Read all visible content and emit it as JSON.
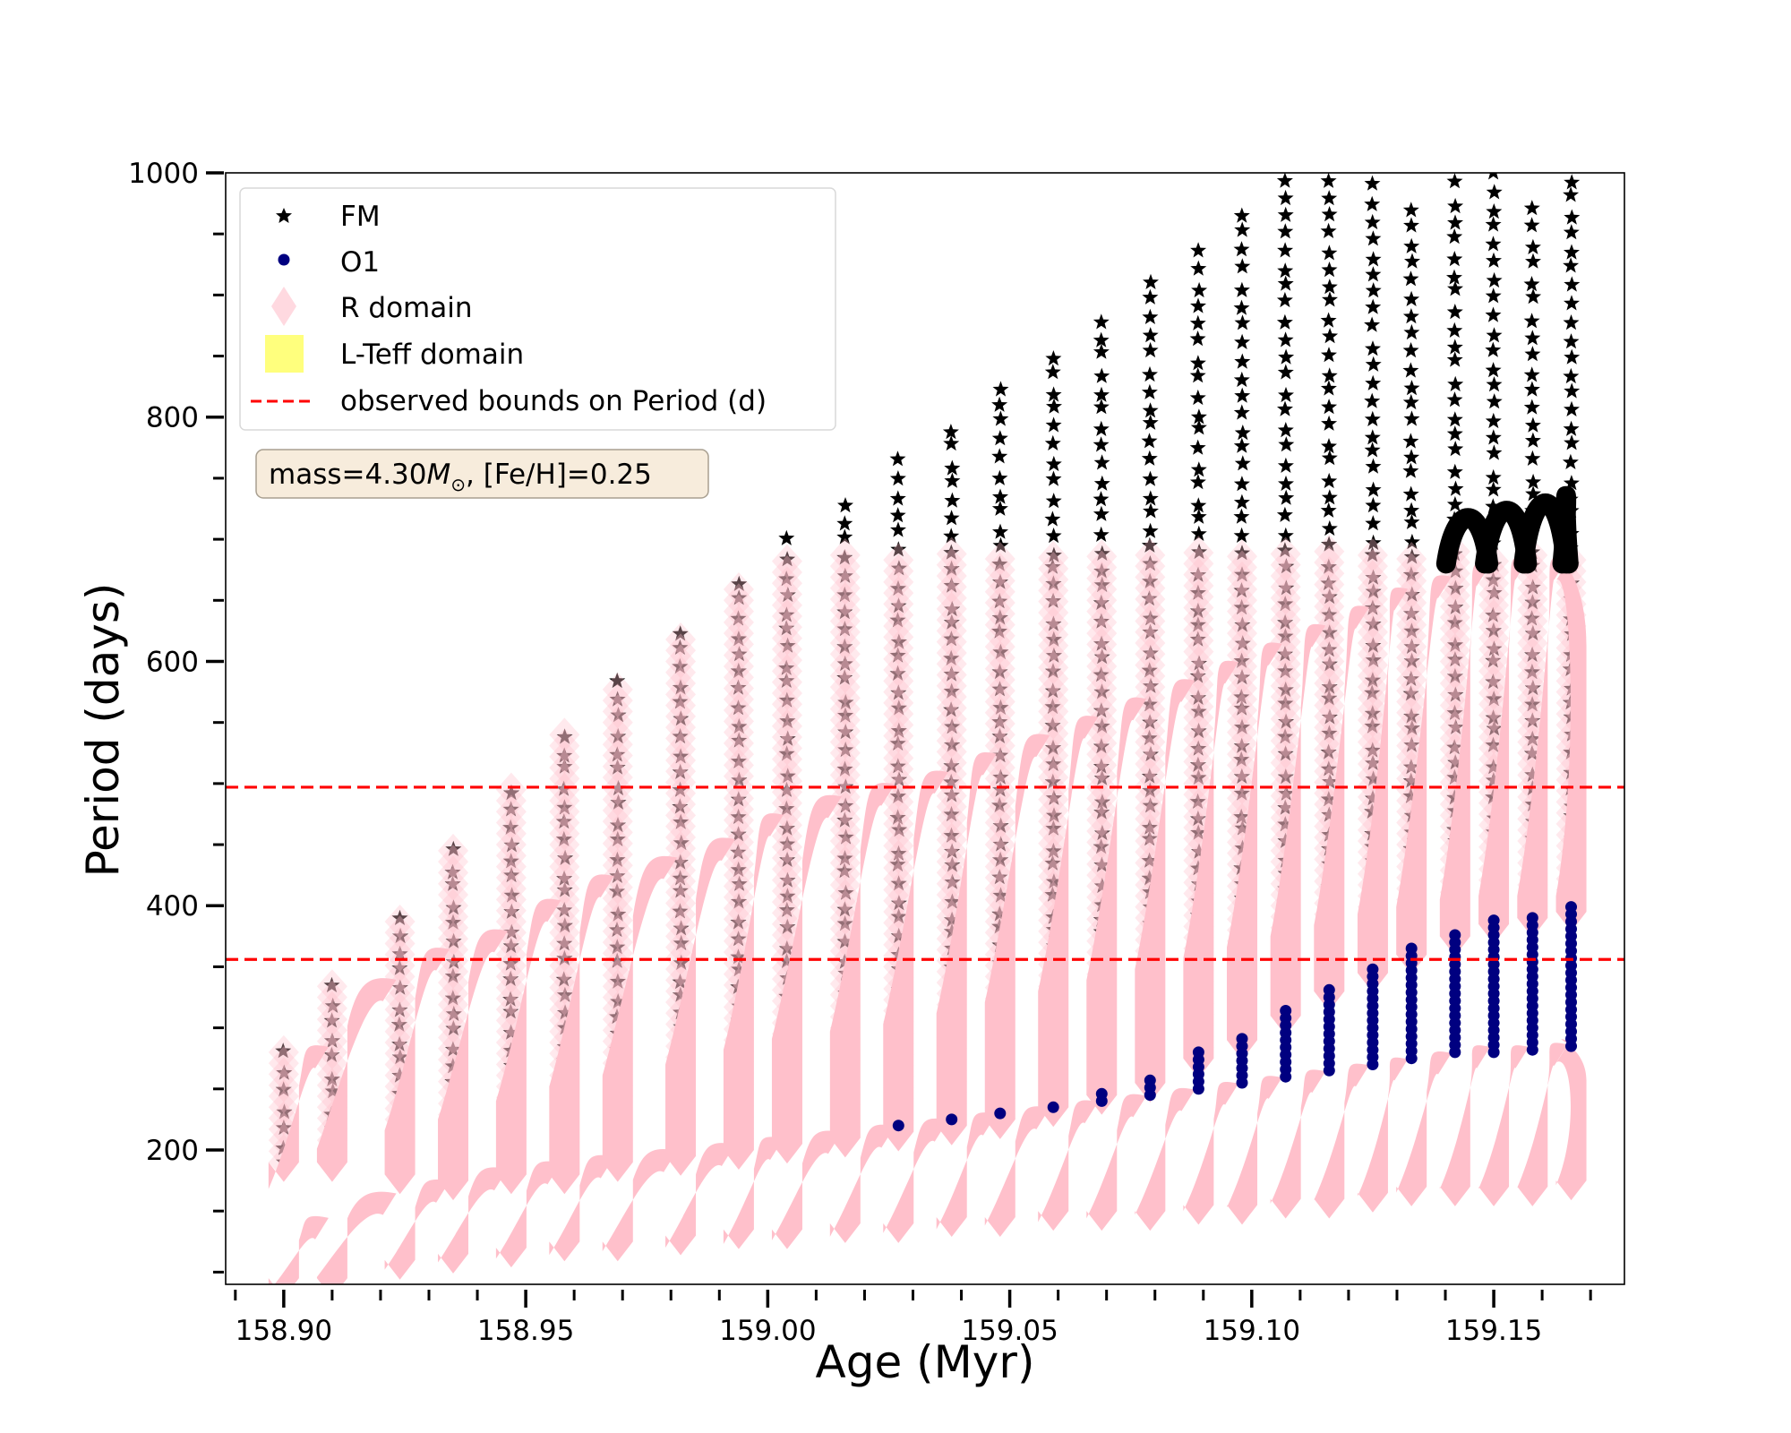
{
  "chart_data": {
    "type": "scatter",
    "title": "",
    "xlabel": "Age (Myr)",
    "ylabel": "Period (days)",
    "xlim": [
      158.888,
      159.177
    ],
    "ylim": [
      90,
      1000
    ],
    "xticks": [
      158.9,
      158.95,
      159.0,
      159.05,
      159.1,
      159.15
    ],
    "xtick_labels": [
      "158.90",
      "158.95",
      "159.00",
      "159.05",
      "159.10",
      "159.15"
    ],
    "x_minor_step": 0.01,
    "yticks": [
      200,
      400,
      600,
      800,
      1000
    ],
    "ytick_labels": [
      "200",
      "400",
      "600",
      "800",
      "1000"
    ],
    "y_minor_step": 50,
    "grid": false,
    "legend": {
      "placement": "top-left",
      "entries": [
        {
          "label": "FM",
          "marker": "star",
          "color": "#000000"
        },
        {
          "label": "O1",
          "marker": "circle",
          "color": "#000080"
        },
        {
          "label": "R domain",
          "marker": "diamond",
          "color": "#ffc0cb"
        },
        {
          "label": "L-Teff domain",
          "marker": "square",
          "color": "#ffff66"
        },
        {
          "label": "observed bounds on Period (d)",
          "marker": "dashed-line",
          "color": "#ff0000"
        }
      ]
    },
    "annotation": {
      "text_prefix": "mass=4.30",
      "text_symbol": "M",
      "text_sub": "⊙",
      "text_suffix": ", [Fe/H]=0.25",
      "box_color": "#f7ecdc",
      "placement": "upper-left"
    },
    "hlines": [
      {
        "label": "upper observed bound",
        "y": 497,
        "color": "#ff0000",
        "style": "dashed"
      },
      {
        "label": "lower observed bound",
        "y": 356,
        "color": "#ff0000",
        "style": "dashed"
      }
    ],
    "series_colors": {
      "FM": "#000000",
      "O1": "#000080",
      "R_domain": "#ffc0cb"
    },
    "pulses": [
      {
        "age": 158.9,
        "fm_lo": 190,
        "fm_hi": 280,
        "fm_top": 280,
        "o1_lo": 95,
        "o1_hi": 140,
        "o1_dots": false
      },
      {
        "age": 158.91,
        "fm_lo": 190,
        "fm_hi": 335,
        "fm_top": 335,
        "o1_lo": 95,
        "o1_hi": 160,
        "o1_dots": false
      },
      {
        "age": 158.924,
        "fm_lo": 180,
        "fm_hi": 360,
        "fm_top": 390,
        "o1_lo": 110,
        "o1_hi": 170,
        "o1_dots": false
      },
      {
        "age": 158.935,
        "fm_lo": 175,
        "fm_hi": 375,
        "fm_top": 445,
        "o1_lo": 115,
        "o1_hi": 180,
        "o1_dots": false
      },
      {
        "age": 158.947,
        "fm_lo": 180,
        "fm_hi": 400,
        "fm_top": 495,
        "o1_lo": 120,
        "o1_hi": 185,
        "o1_dots": false
      },
      {
        "age": 158.958,
        "fm_lo": 180,
        "fm_hi": 420,
        "fm_top": 540,
        "o1_lo": 125,
        "o1_hi": 190,
        "o1_dots": false
      },
      {
        "age": 158.969,
        "fm_lo": 190,
        "fm_hi": 435,
        "fm_top": 585,
        "o1_lo": 125,
        "o1_hi": 195,
        "o1_dots": false
      },
      {
        "age": 158.982,
        "fm_lo": 195,
        "fm_hi": 450,
        "fm_top": 625,
        "o1_lo": 130,
        "o1_hi": 200,
        "o1_dots": false
      },
      {
        "age": 158.994,
        "fm_lo": 200,
        "fm_hi": 470,
        "fm_top": 665,
        "o1_lo": 135,
        "o1_hi": 205,
        "o1_dots": false
      },
      {
        "age": 159.004,
        "fm_lo": 205,
        "fm_hi": 485,
        "fm_top": 700,
        "o1_lo": 135,
        "o1_hi": 210,
        "o1_dots": false
      },
      {
        "age": 159.016,
        "fm_lo": 210,
        "fm_hi": 495,
        "fm_top": 730,
        "o1_lo": 140,
        "o1_hi": 215,
        "o1_dots": false
      },
      {
        "age": 159.027,
        "fm_lo": 215,
        "fm_hi": 505,
        "fm_top": 765,
        "o1_lo": 140,
        "o1_hi": 220,
        "o1_dots": true
      },
      {
        "age": 159.038,
        "fm_lo": 220,
        "fm_hi": 520,
        "fm_top": 790,
        "o1_lo": 145,
        "o1_hi": 225,
        "o1_dots": true
      },
      {
        "age": 159.048,
        "fm_lo": 225,
        "fm_hi": 535,
        "fm_top": 825,
        "o1_lo": 145,
        "o1_hi": 230,
        "o1_dots": true
      },
      {
        "age": 159.059,
        "fm_lo": 235,
        "fm_hi": 550,
        "fm_top": 850,
        "o1_lo": 150,
        "o1_hi": 235,
        "o1_dots": true
      },
      {
        "age": 159.069,
        "fm_lo": 245,
        "fm_hi": 565,
        "fm_top": 880,
        "o1_lo": 150,
        "o1_hi": 240,
        "o1_dots": true
      },
      {
        "age": 159.079,
        "fm_lo": 255,
        "fm_hi": 580,
        "fm_top": 910,
        "o1_lo": 150,
        "o1_hi": 245,
        "o1_dots": true
      },
      {
        "age": 159.089,
        "fm_lo": 275,
        "fm_hi": 595,
        "fm_top": 935,
        "o1_lo": 155,
        "o1_hi": 250,
        "o1_dots": true
      },
      {
        "age": 159.098,
        "fm_lo": 290,
        "fm_hi": 610,
        "fm_top": 965,
        "o1_lo": 155,
        "o1_hi": 255,
        "o1_dots": true
      },
      {
        "age": 159.107,
        "fm_lo": 310,
        "fm_hi": 625,
        "fm_top": 995,
        "o1_lo": 160,
        "o1_hi": 260,
        "o1_dots": true
      },
      {
        "age": 159.116,
        "fm_lo": 330,
        "fm_hi": 640,
        "fm_top": 995,
        "o1_lo": 160,
        "o1_hi": 265,
        "o1_dots": true
      },
      {
        "age": 159.125,
        "fm_lo": 345,
        "fm_hi": 655,
        "fm_top": 990,
        "o1_lo": 165,
        "o1_hi": 270,
        "o1_dots": true
      },
      {
        "age": 159.133,
        "fm_lo": 360,
        "fm_hi": 665,
        "fm_top": 970,
        "o1_lo": 170,
        "o1_hi": 275,
        "o1_dots": true
      },
      {
        "age": 159.142,
        "fm_lo": 375,
        "fm_hi": 675,
        "fm_top": 990,
        "o1_lo": 170,
        "o1_hi": 280,
        "o1_dots": true
      },
      {
        "age": 159.15,
        "fm_lo": 385,
        "fm_hi": 680,
        "fm_top": 1000,
        "o1_lo": 170,
        "o1_hi": 280,
        "o1_dots": true
      },
      {
        "age": 159.158,
        "fm_lo": 390,
        "fm_hi": 680,
        "fm_top": 970,
        "o1_lo": 170,
        "o1_hi": 282,
        "o1_dots": true
      },
      {
        "age": 159.166,
        "fm_lo": 395,
        "fm_hi": 680,
        "fm_top": 995,
        "o1_lo": 175,
        "o1_hi": 285,
        "o1_dots": true
      }
    ],
    "fm_black_tail": {
      "age_start": 159.14,
      "age_end": 159.166,
      "y_from": 680,
      "y_to": 730
    }
  }
}
